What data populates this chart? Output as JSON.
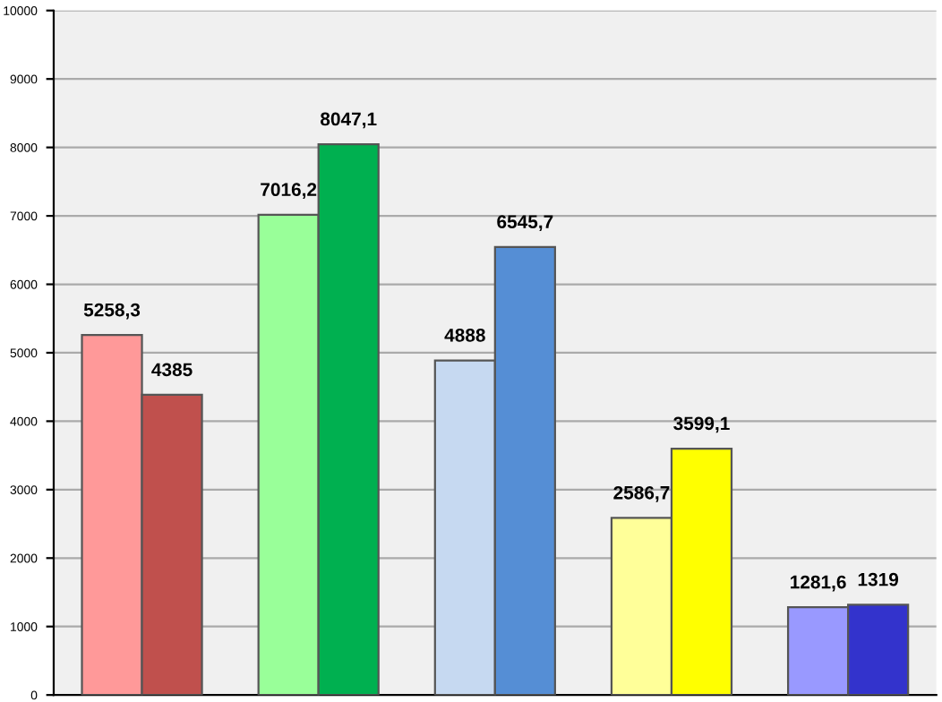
{
  "chart_data": {
    "type": "bar",
    "categories": [
      null,
      null,
      null,
      null,
      null
    ],
    "series": [
      {
        "colors": [
          "#ff9999",
          "#99ff99",
          "#c6d9f1",
          "#ffff99",
          "#9999ff"
        ],
        "values": [
          5258.3,
          7016.2,
          4888,
          2586.7,
          1281.6
        ],
        "value_labels": [
          "5258,3",
          "7016,2",
          "4888",
          "2586,7",
          "1281,6"
        ]
      },
      {
        "colors": [
          "#c0504d",
          "#00b050",
          "#558ed5",
          "#ffff00",
          "#3333cc"
        ],
        "values": [
          4385,
          8047.1,
          6545.7,
          3599.1,
          1319
        ],
        "value_labels": [
          "4385",
          "8047,1",
          "6545,7",
          "3599,1",
          "1319"
        ]
      }
    ],
    "ylim": [
      0,
      10000
    ],
    "yticks": [
      0,
      1000,
      2000,
      3000,
      4000,
      5000,
      6000,
      7000,
      8000,
      9000,
      10000
    ],
    "grid": "y"
  }
}
